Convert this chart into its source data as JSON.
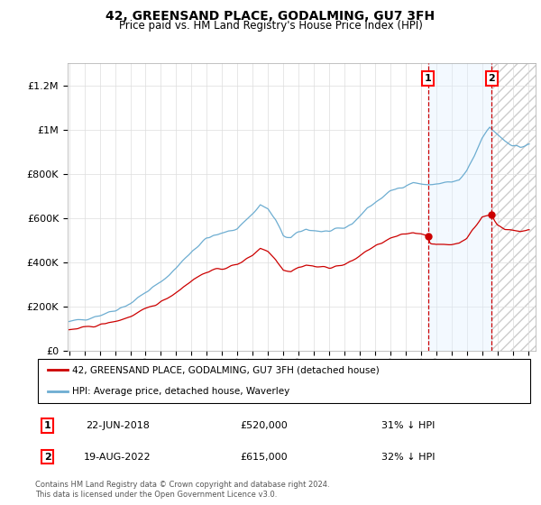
{
  "title": "42, GREENSAND PLACE, GODALMING, GU7 3FH",
  "subtitle": "Price paid vs. HM Land Registry's House Price Index (HPI)",
  "legend_line1": "42, GREENSAND PLACE, GODALMING, GU7 3FH (detached house)",
  "legend_line2": "HPI: Average price, detached house, Waverley",
  "footer": "Contains HM Land Registry data © Crown copyright and database right 2024.\nThis data is licensed under the Open Government Licence v3.0.",
  "sale1_date": "22-JUN-2018",
  "sale1_price": "£520,000",
  "sale1_pct": "31% ↓ HPI",
  "sale2_date": "19-AUG-2022",
  "sale2_price": "£615,000",
  "sale2_pct": "32% ↓ HPI",
  "sale1_year": 2018.47,
  "sale2_year": 2022.63,
  "sale1_price_val": 520000,
  "sale2_price_val": 615000,
  "hpi_color": "#6dadd1",
  "price_color": "#cc0000",
  "vline_color": "#cc0000",
  "shade_color": "#ddeeff",
  "ylim": [
    0,
    1300000
  ],
  "xlim_start": 1994.9,
  "xlim_end": 2025.5
}
